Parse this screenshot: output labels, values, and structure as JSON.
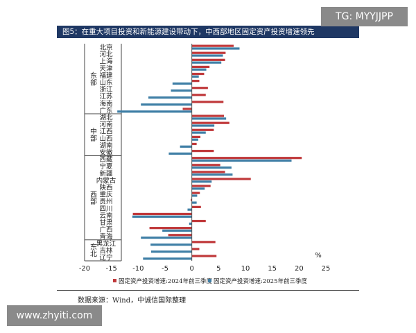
{
  "title": "图5：在重大项目投资和新能源建设带动下，中西部地区固定资产投资增速领先",
  "source": "数据来源：Wind，中诚信国际整理",
  "watermark_tg": "TG: MYYJJPP",
  "watermark_site": "www.zhyiti.com",
  "colors": {
    "series2024": "#c0393b",
    "series2025": "#3f7fa6",
    "title_bg": "#1f3864"
  },
  "chart_data": {
    "type": "bar",
    "orientation": "horizontal",
    "unit": "%",
    "xlim": [
      -20,
      25
    ],
    "xticks": [
      -20,
      -15,
      -10,
      -5,
      0,
      5,
      10,
      15,
      20,
      25
    ],
    "grid": false,
    "legend_position": "bottom",
    "groups": [
      {
        "name": "东部",
        "start": 0,
        "end": 9
      },
      {
        "name": "中部",
        "start": 10,
        "end": 15
      },
      {
        "name": "西部",
        "start": 16,
        "end": 27
      },
      {
        "name": "东北",
        "start": 28,
        "end": 30
      }
    ],
    "categories": [
      "北京",
      "河北",
      "上海",
      "天津",
      "福建",
      "山东",
      "浙江",
      "江苏",
      "海南",
      "广东",
      "湖北",
      "河南",
      "江西",
      "山西",
      "湖南",
      "安徽",
      "西藏",
      "宁夏",
      "新疆",
      "内蒙古",
      "陕西",
      "重庆",
      "贵州",
      "四川",
      "云南",
      "甘肃",
      "广西",
      "青海",
      "黑龙江",
      "吉林",
      "辽宁"
    ],
    "series": [
      {
        "name": "固定资产投资增速:2024年前三季度",
        "values": [
          7.8,
          6.3,
          6.2,
          3.3,
          2.3,
          1.4,
          3.0,
          2.6,
          5.9,
          -1.7,
          6.0,
          7.0,
          4.1,
          1.6,
          0.9,
          4.1,
          20.5,
          5.3,
          6.2,
          11.0,
          3.5,
          1.5,
          -0.2,
          1.7,
          -11.0,
          2.6,
          -7.9,
          -4.4,
          4.4,
          1.4,
          4.6
        ]
      },
      {
        "name": "固定资产投资增速:2025年前三季度",
        "values": [
          8.9,
          5.8,
          5.5,
          2.7,
          1.3,
          -3.6,
          -3.9,
          -8.1,
          -9.5,
          -13.9,
          6.4,
          4.2,
          2.6,
          1.2,
          -2.2,
          -4.3,
          18.6,
          7.4,
          7.6,
          3.7,
          2.4,
          1.0,
          0.9,
          -0.8,
          -11.1,
          -0.5,
          -5.5,
          -9.5,
          -7.7,
          -7.6,
          -9.1
        ]
      }
    ]
  }
}
